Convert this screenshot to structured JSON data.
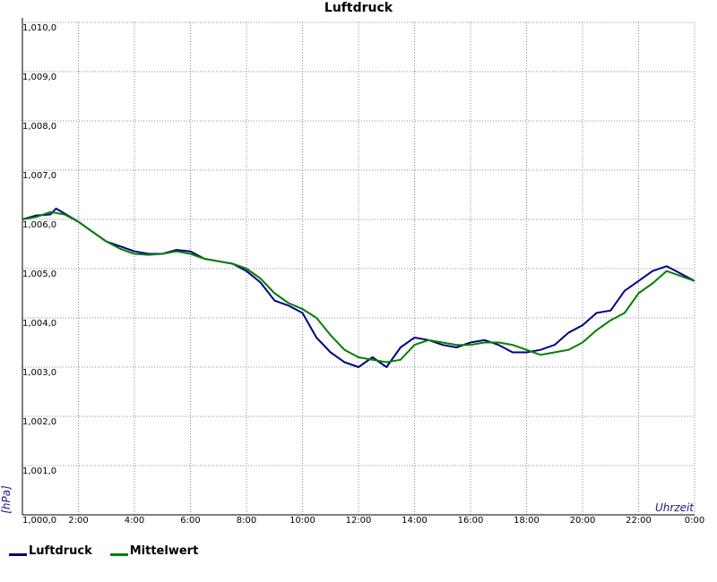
{
  "chart_data": {
    "type": "line",
    "title": "Luftdruck",
    "xlabel": "Uhrzeit",
    "ylabel": "[hPa]",
    "xlim": [
      0,
      24
    ],
    "ylim": [
      1000.0,
      1010.0
    ],
    "x_tick_labels": [
      "2:00",
      "4:00",
      "6:00",
      "8:00",
      "10:00",
      "12:00",
      "14:00",
      "16:00",
      "18:00",
      "20:00",
      "22:00",
      "0:00"
    ],
    "y_tick_labels": [
      "1,000,0",
      "1,001,0",
      "1,002,0",
      "1,003,0",
      "1,004,0",
      "1,005,0",
      "1,006,0",
      "1,007,0",
      "1,008,0",
      "1,009,0",
      "1,010,0"
    ],
    "grid": true,
    "legend_position": "bottom-left",
    "series": [
      {
        "name": "Luftdruck",
        "color": "#000080",
        "x": [
          0,
          0.5,
          1,
          1.2,
          1.5,
          2,
          2.5,
          3,
          3.5,
          4,
          4.5,
          5,
          5.5,
          6,
          6.5,
          7,
          7.5,
          8,
          8.5,
          9,
          9.5,
          10,
          10.5,
          11,
          11.5,
          12,
          12.5,
          13,
          13.5,
          14,
          14.5,
          15,
          15.5,
          16,
          16.5,
          17,
          17.5,
          18,
          18.5,
          19,
          19.5,
          20,
          20.5,
          21,
          21.5,
          22,
          22.5,
          23,
          23.5,
          24
        ],
        "y": [
          1006.0,
          1006.08,
          1006.1,
          1006.22,
          1006.12,
          1005.95,
          1005.75,
          1005.55,
          1005.45,
          1005.35,
          1005.3,
          1005.3,
          1005.38,
          1005.35,
          1005.2,
          1005.15,
          1005.1,
          1004.95,
          1004.72,
          1004.35,
          1004.25,
          1004.1,
          1003.6,
          1003.3,
          1003.1,
          1003.0,
          1003.2,
          1003.0,
          1003.4,
          1003.6,
          1003.55,
          1003.45,
          1003.4,
          1003.5,
          1003.55,
          1003.45,
          1003.3,
          1003.3,
          1003.35,
          1003.45,
          1003.7,
          1003.85,
          1004.1,
          1004.15,
          1004.55,
          1004.75,
          1004.95,
          1005.05,
          1004.9,
          1004.75
        ]
      },
      {
        "name": "Mittelwert",
        "color": "#008000",
        "x": [
          0,
          0.5,
          1,
          1.5,
          2,
          2.5,
          3,
          3.5,
          4,
          4.5,
          5,
          5.5,
          6,
          6.5,
          7,
          7.5,
          8,
          8.5,
          9,
          9.5,
          10,
          10.5,
          11,
          11.5,
          12,
          12.5,
          13,
          13.5,
          14,
          14.5,
          15,
          15.5,
          16,
          16.5,
          17,
          17.5,
          18,
          18.5,
          19,
          19.5,
          20,
          20.5,
          21,
          21.5,
          22,
          22.5,
          23,
          23.5,
          24
        ],
        "y": [
          1006.0,
          1006.05,
          1006.15,
          1006.1,
          1005.95,
          1005.75,
          1005.55,
          1005.4,
          1005.3,
          1005.28,
          1005.3,
          1005.35,
          1005.3,
          1005.2,
          1005.15,
          1005.1,
          1005.0,
          1004.8,
          1004.5,
          1004.3,
          1004.18,
          1004.0,
          1003.65,
          1003.35,
          1003.2,
          1003.15,
          1003.1,
          1003.15,
          1003.45,
          1003.55,
          1003.5,
          1003.45,
          1003.45,
          1003.5,
          1003.5,
          1003.45,
          1003.35,
          1003.25,
          1003.3,
          1003.35,
          1003.5,
          1003.75,
          1003.95,
          1004.1,
          1004.5,
          1004.7,
          1004.95,
          1004.85,
          1004.75
        ]
      }
    ]
  }
}
